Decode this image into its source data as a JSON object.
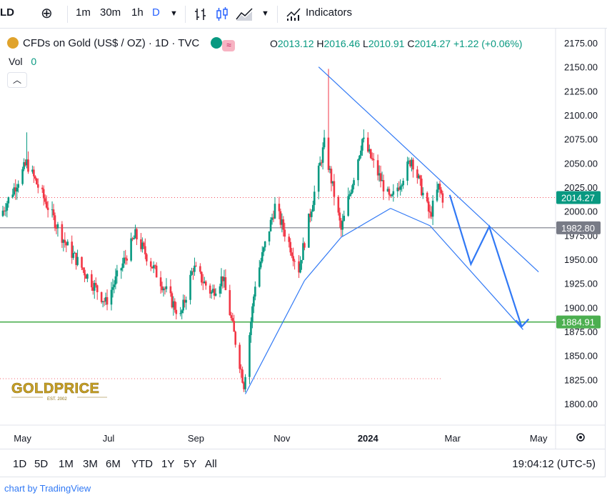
{
  "toolbar": {
    "symbol_fragment": "LD",
    "add_symbol": "⊕",
    "intervals": [
      "1m",
      "30m",
      "1h",
      "D"
    ],
    "indicators_label": "Indicators"
  },
  "legend": {
    "title": "CFDs on Gold (US$ / OZ) · 1D · TVC",
    "open_label": "O",
    "open": "2013.12",
    "high_label": "H",
    "high": "2016.46",
    "low_label": "L",
    "low": "2010.91",
    "close_label": "C",
    "close": "2014.27",
    "change": "+1.22 (+0.06%)",
    "vol_label": "Vol",
    "vol_value": "0"
  },
  "ranges": [
    "1D",
    "5D",
    "1M",
    "3M",
    "6M",
    "YTD",
    "1Y",
    "5Y",
    "All"
  ],
  "clock": "19:04:12 (UTC-5)",
  "credit": "chart by TradingView",
  "watermark": {
    "name": "GOLDPRICE",
    "tagline": "EST. 2002"
  },
  "colors": {
    "up": "#089981",
    "down": "#f23645",
    "trend": "#3179f5",
    "support": "#4caf50",
    "level": "#787b86",
    "accent": "#2962ff"
  },
  "chart_data": {
    "type": "candlestick",
    "title": "CFDs on Gold (US$ / OZ) · 1D · TVC",
    "ylim": [
      1790,
      2180
    ],
    "y_ticks": [
      2175,
      2150,
      2125,
      2100,
      2075,
      2050,
      2025,
      2000,
      1975,
      1950,
      1925,
      1900,
      1875,
      1850,
      1825,
      1800
    ],
    "x_labels": [
      "May",
      "Jul",
      "Sep",
      "Nov",
      "2024",
      "Mar",
      "May"
    ],
    "x_label_dates": [
      "2023-05-01",
      "2023-07-01",
      "2023-09-01",
      "2023-11-01",
      "2024-01-01",
      "2024-03-01",
      "2024-05-01"
    ],
    "x_range": [
      "2023-04-15",
      "2024-05-08"
    ],
    "price_label": "2014.27",
    "levels": [
      {
        "value": 1982.8,
        "label": "1982.80",
        "color": "#787b86"
      },
      {
        "value": 1884.91,
        "label": "1884.91",
        "color": "#4caf50"
      }
    ],
    "prior_dotted_level": 1826,
    "anchors": [
      {
        "date": "2023-04-15",
        "value": 1995
      },
      {
        "date": "2023-05-04",
        "value": 2050
      },
      {
        "date": "2023-06-01",
        "value": 1965
      },
      {
        "date": "2023-06-29",
        "value": 1905
      },
      {
        "date": "2023-07-20",
        "value": 1975
      },
      {
        "date": "2023-08-21",
        "value": 1890
      },
      {
        "date": "2023-08-30",
        "value": 1942
      },
      {
        "date": "2023-09-12",
        "value": 1915
      },
      {
        "date": "2023-09-20",
        "value": 1932
      },
      {
        "date": "2023-10-05",
        "value": 1820
      },
      {
        "date": "2023-10-13",
        "value": 1925
      },
      {
        "date": "2023-10-27",
        "value": 2005
      },
      {
        "date": "2023-11-13",
        "value": 1940
      },
      {
        "date": "2023-12-01",
        "value": 2070
      },
      {
        "date": "2023-12-07",
        "value": 2025
      },
      {
        "date": "2023-12-13",
        "value": 1980
      },
      {
        "date": "2023-12-28",
        "value": 2075
      },
      {
        "date": "2024-01-17",
        "value": 2010
      },
      {
        "date": "2024-02-01",
        "value": 2055
      },
      {
        "date": "2024-02-14",
        "value": 1995
      },
      {
        "date": "2024-02-20",
        "value": 2025
      },
      {
        "date": "2024-02-23",
        "value": 2014
      }
    ],
    "trendlines": [
      {
        "from": [
          "2023-11-27",
          2150
        ],
        "to": [
          "2024-05-01",
          1937
        ]
      },
      {
        "from": [
          "2023-10-06",
          1810
        ],
        "to": [
          "2023-11-17",
          1928
        ]
      },
      {
        "from": [
          "2023-11-17",
          1928
        ],
        "to": [
          "2023-12-13",
          1973
        ]
      },
      {
        "from": [
          "2023-12-13",
          1973
        ],
        "to": [
          "2024-01-17",
          2003
        ]
      },
      {
        "from": [
          "2024-01-17",
          2003
        ],
        "to": [
          "2024-02-14",
          1985
        ]
      },
      {
        "from": [
          "2024-02-14",
          1985
        ],
        "to": [
          "2024-04-20",
          1877
        ]
      }
    ],
    "projection": [
      [
        "2024-02-28",
        2017
      ],
      [
        "2024-03-14",
        1945
      ],
      [
        "2024-03-27",
        1984
      ],
      [
        "2024-04-19",
        1880
      ],
      [
        "2024-04-24",
        1888
      ]
    ]
  }
}
